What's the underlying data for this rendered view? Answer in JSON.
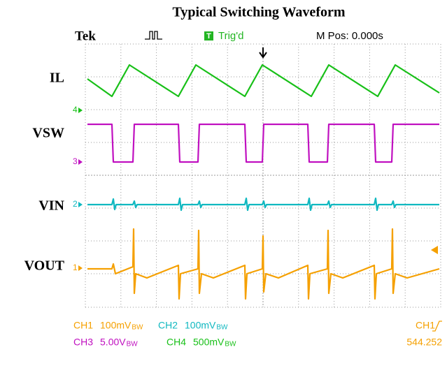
{
  "title": "Typical Switching Waveform",
  "header": {
    "brand": "Tek",
    "trigger_icon": "T",
    "trigger_status": "Trig'd",
    "position": "M Pos: 0.000s"
  },
  "signals": [
    {
      "label": "IL",
      "channel": "4"
    },
    {
      "label": "VSW",
      "channel": "3"
    },
    {
      "label": "VIN",
      "channel": "2"
    },
    {
      "label": "VOUT",
      "channel": "1"
    }
  ],
  "footer": {
    "rows": [
      [
        {
          "channel": "CH1",
          "scale": "100mV",
          "bw": "BW"
        },
        {
          "channel": "CH2",
          "scale": "100mV",
          "bw": "BW"
        }
      ],
      [
        {
          "channel": "CH3",
          "scale": "5.00V",
          "bw": "BW"
        },
        {
          "channel": "CH4",
          "scale": "500mV",
          "bw": "BW"
        }
      ]
    ],
    "trigger_source": "CH1",
    "frequency": "544.252"
  }
}
